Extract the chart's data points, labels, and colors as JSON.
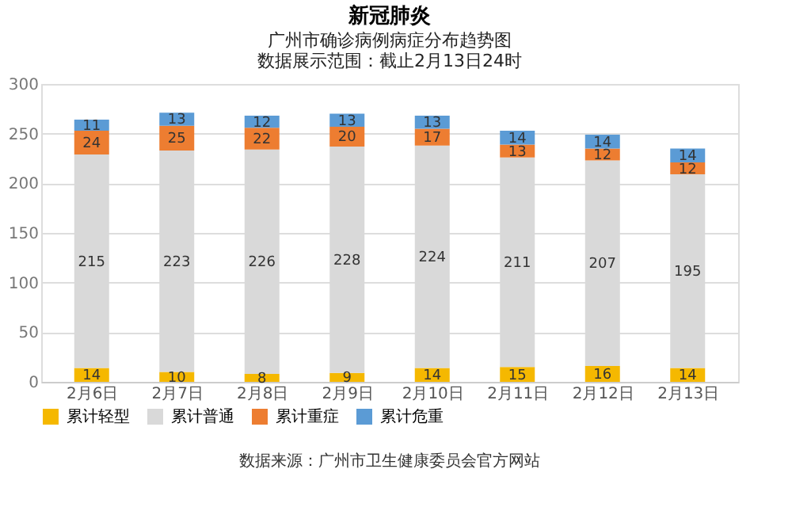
{
  "chart_data": {
    "type": "bar",
    "stacked": true,
    "title": "新冠肺炎",
    "subtitle": "广州市确诊病例病症分布趋势图",
    "categories": [
      "2月6日",
      "2月7日",
      "2月8日",
      "2月9日",
      "2月10日",
      "2月11日",
      "2月12日",
      "2月13日"
    ],
    "series": [
      {
        "name": "累计轻型",
        "color": "#f5b800",
        "values": [
          14,
          10,
          8,
          9,
          14,
          15,
          16,
          14
        ]
      },
      {
        "name": "累计普通",
        "color": "#d9d9d9",
        "values": [
          215,
          223,
          226,
          228,
          224,
          211,
          207,
          195
        ]
      },
      {
        "name": "累计重症",
        "color": "#ed7d31",
        "values": [
          24,
          25,
          22,
          20,
          17,
          13,
          12,
          12
        ]
      },
      {
        "name": "累计危重",
        "color": "#5b9bd5",
        "values": [
          11,
          13,
          12,
          13,
          13,
          14,
          14,
          14
        ]
      }
    ],
    "ylim": [
      0,
      300
    ],
    "yticks": [
      0,
      50,
      100,
      150,
      200,
      250,
      300
    ],
    "grid": "y",
    "legend": "bottom",
    "data_labels": true,
    "annotations": [
      "数据展示范围：截止2月13日24时",
      "数据来源：广州市卫生健康委员会官方网站"
    ]
  }
}
